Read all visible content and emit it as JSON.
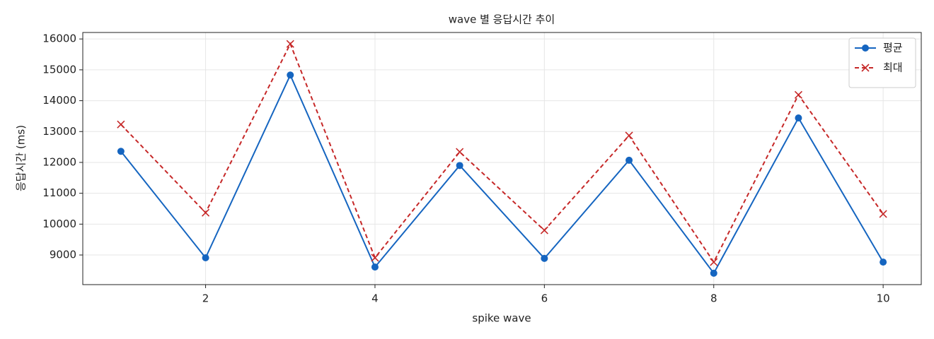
{
  "chart_data": {
    "type": "line",
    "title": "wave 별 응답시간 추이",
    "x_label": "spike wave",
    "y_label": "응답시간 (ms)",
    "x": [
      1,
      2,
      3,
      4,
      5,
      6,
      7,
      8,
      9,
      10
    ],
    "series": [
      {
        "name": "평균",
        "color": "#1565c0",
        "marker": "o",
        "linestyle": "solid",
        "values": [
          12360,
          8910,
          14830,
          8610,
          11900,
          8890,
          12070,
          8410,
          13440,
          8770
        ]
      },
      {
        "name": "최대",
        "color": "#c62828",
        "marker": "x",
        "linestyle": "dashed",
        "values": [
          13230,
          10370,
          15840,
          8910,
          12340,
          9800,
          12870,
          8770,
          14190,
          10330
        ]
      }
    ],
    "xlim": [
      0.55,
      10.45
    ],
    "ylim": [
      8040,
      16210
    ],
    "xticks": [
      2,
      4,
      6,
      8,
      10
    ],
    "yticks": [
      9000,
      10000,
      11000,
      12000,
      13000,
      14000,
      15000,
      16000
    ],
    "grid": true,
    "legend": "upper right"
  }
}
